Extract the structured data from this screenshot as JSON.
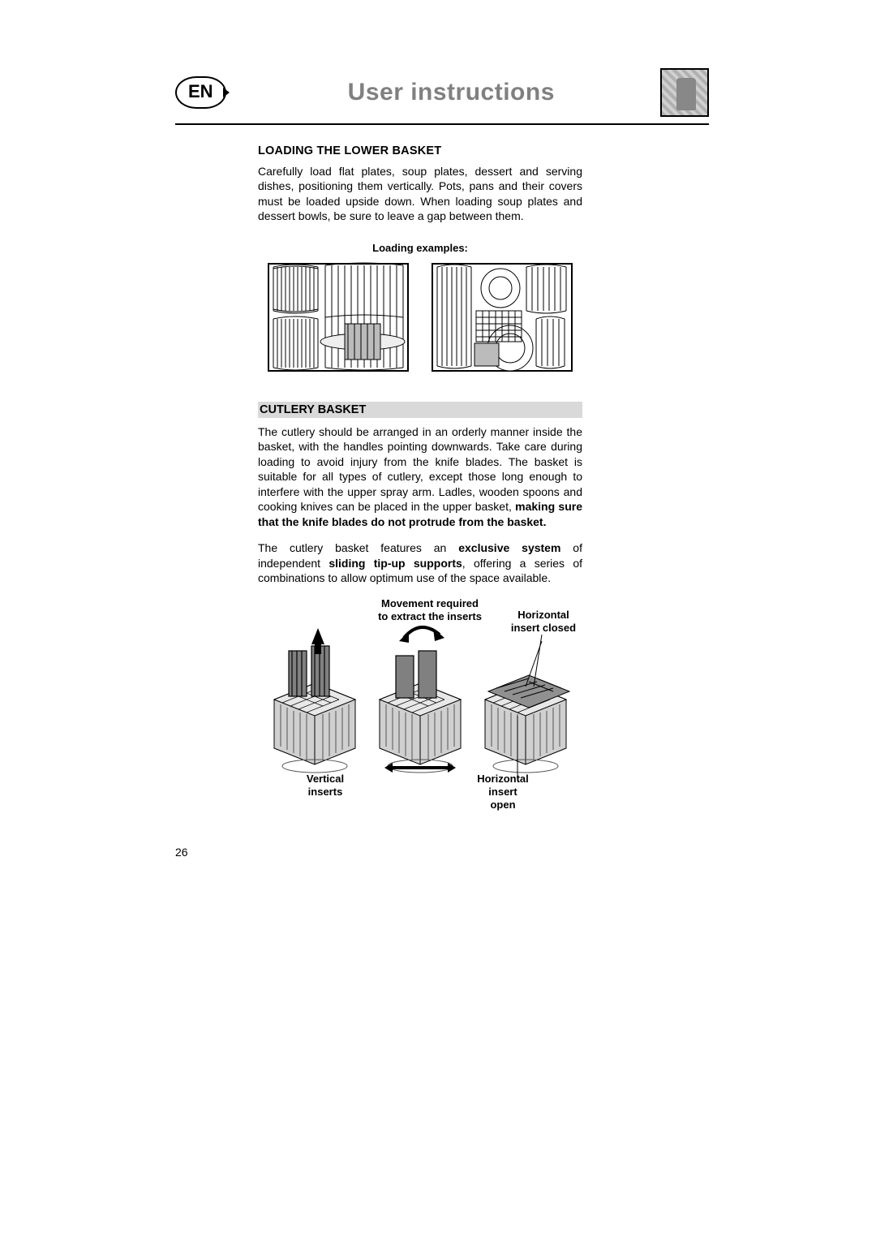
{
  "header": {
    "lang": "EN",
    "title": "User instructions"
  },
  "section1": {
    "heading": "LOADING THE LOWER BASKET",
    "para": "Carefully load flat plates, soup plates, dessert and serving dishes, positioning them vertically. Pots, pans and their covers must be loaded upside down. When loading soup plates and dessert bowls, be sure to leave a gap between them.",
    "examples_label": "Loading examples:"
  },
  "section2": {
    "heading": "CUTLERY BASKET",
    "para1_a": "The cutlery should be arranged in an orderly manner inside the basket, with the handles pointing downwards. Take care during loading to avoid injury from the knife blades. The basket is suitable for all types of cutlery, except those long enough to interfere with the upper spray arm. Ladles, wooden spoons and cooking knives can be placed in the upper basket, ",
    "para1_b": "making sure that the knife blades do not protrude from the basket.",
    "para2_a": "The cutlery basket features an ",
    "para2_b": "exclusive system",
    "para2_c": " of independent ",
    "para2_d": "sliding tip-up supports",
    "para2_e": ", offering a series of combinations to allow optimum use of the space available."
  },
  "diagram": {
    "movement": "Movement required\nto extract the inserts",
    "horiz_closed": "Horizontal\ninsert closed",
    "vertical": "Vertical\ninserts",
    "horiz_open": "Horizontal\ninsert\nopen",
    "colors": {
      "line": "#000000",
      "fill_dark": "#4a4a4a",
      "fill_mid": "#808080",
      "fill_light": "#d0d0d0"
    }
  },
  "page_number": "26",
  "style": {
    "page_bg": "#ffffff",
    "title_color": "#808080",
    "text_color": "#000000",
    "subheading_bg": "#d9d9d9",
    "body_fontsize": 14,
    "heading_fontsize": 14.5,
    "title_fontsize": 30
  }
}
